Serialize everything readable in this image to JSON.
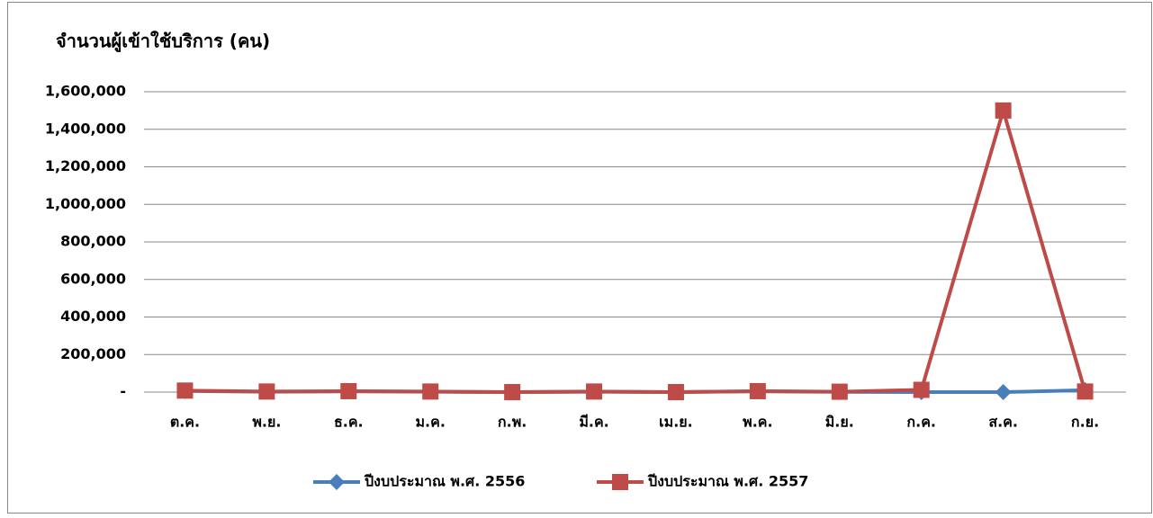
{
  "chart_data": {
    "type": "line",
    "title": "จำนวนผู้เข้าใช้บริการ (คน)",
    "categories": [
      "ต.ค.",
      "พ.ย.",
      "ธ.ค.",
      "ม.ค.",
      "ก.พ.",
      "มี.ค.",
      "เม.ย.",
      "พ.ค.",
      "มิ.ย.",
      "ก.ค.",
      "ส.ค.",
      "ก.ย."
    ],
    "series": [
      {
        "name": "ปีงบประมาณ พ.ศ. 2556",
        "color": "#4a7ebb",
        "marker": "diamond",
        "values": [
          6000,
          2000,
          4000,
          2000,
          0,
          2000,
          0,
          4000,
          1000,
          0,
          0,
          10000
        ]
      },
      {
        "name": "ปีงบประมาณ พ.ศ. 2557",
        "color": "#be4b48",
        "marker": "square",
        "values": [
          8000,
          3000,
          5000,
          3000,
          0,
          3000,
          0,
          5000,
          2000,
          12000,
          1500000,
          3000
        ]
      }
    ],
    "ylim": [
      0,
      1600000
    ],
    "yticks": [
      {
        "value": 0,
        "label": "-"
      },
      {
        "value": 200000,
        "label": "200,000"
      },
      {
        "value": 400000,
        "label": "400,000"
      },
      {
        "value": 600000,
        "label": "600,000"
      },
      {
        "value": 800000,
        "label": "800,000"
      },
      {
        "value": 1000000,
        "label": "1,000,000"
      },
      {
        "value": 1200000,
        "label": "1,200,000"
      },
      {
        "value": 1400000,
        "label": "1,400,000"
      },
      {
        "value": 1600000,
        "label": "1,600,000"
      }
    ],
    "grid": true,
    "legend": "bottom"
  }
}
